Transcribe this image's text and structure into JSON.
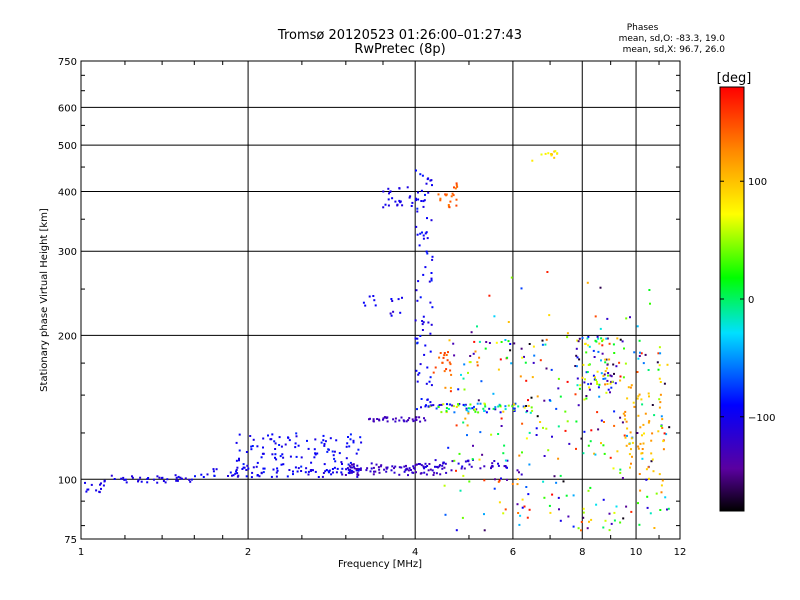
{
  "header": {
    "title_line1": "Tromsø 20120523 01:26:00–01:27:43",
    "title_line2": "RwPretec (8p)"
  },
  "phases_box": {
    "title": "Phases",
    "line1": "mean, sd,O: -83.3, 19.0",
    "line2": "mean, sd,X:  96.7, 26.0"
  },
  "colorbar": {
    "label": "[deg]",
    "ticks": [
      "100",
      "0",
      "−100"
    ],
    "tick_values": [
      100,
      0,
      -100
    ],
    "range": [
      -180,
      180
    ]
  },
  "chart_data": {
    "type": "scatter",
    "xlabel": "Frequency [MHz]",
    "ylabel": "Stationary phase Virtual Height [km]",
    "xscale": "log",
    "yscale": "log",
    "xlim": [
      1,
      12
    ],
    "ylim": [
      75,
      750
    ],
    "xticks": [
      1,
      2,
      4,
      6,
      8,
      10,
      12
    ],
    "xtick_labels": [
      "1",
      "2",
      "4",
      "6",
      "8",
      "10",
      "12"
    ],
    "yticks": [
      75,
      100,
      200,
      300,
      400,
      500,
      600,
      750
    ],
    "ytick_labels": [
      "75",
      "100",
      "200",
      "300",
      "400",
      "500",
      "600",
      "750"
    ],
    "grid": true,
    "clusters": [
      {
        "f": [
          1.0,
          1.1
        ],
        "h": [
          93,
          99
        ],
        "ph": [
          -110,
          -95
        ],
        "n": 12
      },
      {
        "f": [
          1.1,
          1.6
        ],
        "h": [
          98,
          102
        ],
        "ph": [
          -115,
          -95
        ],
        "n": 40
      },
      {
        "f": [
          1.6,
          3.2
        ],
        "h": [
          101,
          106
        ],
        "ph": [
          -115,
          -85
        ],
        "n": 70
      },
      {
        "f": [
          1.9,
          3.2
        ],
        "h": [
          103,
          125
        ],
        "ph": [
          -110,
          -80
        ],
        "n": 120
      },
      {
        "f": [
          3.0,
          4.6
        ],
        "h": [
          102,
          108
        ],
        "ph": [
          -135,
          -110
        ],
        "n": 90
      },
      {
        "f": [
          4.0,
          6.0
        ],
        "h": [
          104,
          110
        ],
        "ph": [
          -130,
          -100
        ],
        "n": 40
      },
      {
        "f": [
          3.3,
          4.2
        ],
        "h": [
          132,
          135
        ],
        "ph": [
          -135,
          -120
        ],
        "n": 35
      },
      {
        "f": [
          4.2,
          6.5
        ],
        "h": [
          138,
          144
        ],
        "ph": [
          -130,
          100
        ],
        "n": 80
      },
      {
        "f": [
          3.5,
          4.2
        ],
        "h": [
          370,
          410
        ],
        "ph": [
          -110,
          -95
        ],
        "n": 30
      },
      {
        "f": [
          4.0,
          4.3
        ],
        "h": [
          140,
          450
        ],
        "ph": [
          -110,
          -80
        ],
        "n": 80
      },
      {
        "f": [
          4.3,
          4.7
        ],
        "h": [
          165,
          185
        ],
        "ph": [
          130,
          160
        ],
        "n": 18
      },
      {
        "f": [
          4.4,
          4.8
        ],
        "h": [
          370,
          420
        ],
        "ph": [
          130,
          160
        ],
        "n": 20
      },
      {
        "f": [
          3.2,
          3.4
        ],
        "h": [
          228,
          242
        ],
        "ph": [
          -100,
          -90
        ],
        "n": 6
      },
      {
        "f": [
          3.6,
          3.9
        ],
        "h": [
          218,
          242
        ],
        "ph": [
          -120,
          -90
        ],
        "n": 8
      },
      {
        "f": [
          6.5,
          7.3
        ],
        "h": [
          460,
          490
        ],
        "ph": [
          60,
          110
        ],
        "n": 12
      },
      {
        "f": [
          4.5,
          11.5
        ],
        "h": [
          78,
          200
        ],
        "ph": [
          -180,
          180
        ],
        "n": 320
      },
      {
        "f": [
          7.8,
          9.2
        ],
        "h": [
          150,
          200
        ],
        "ph": [
          -170,
          110
        ],
        "n": 70
      },
      {
        "f": [
          9.5,
          11.3
        ],
        "h": [
          100,
          160
        ],
        "ph": [
          80,
          130
        ],
        "n": 60
      },
      {
        "f": [
          4.6,
          11.0
        ],
        "h": [
          200,
          280
        ],
        "ph": [
          -180,
          180
        ],
        "n": 20
      }
    ]
  }
}
